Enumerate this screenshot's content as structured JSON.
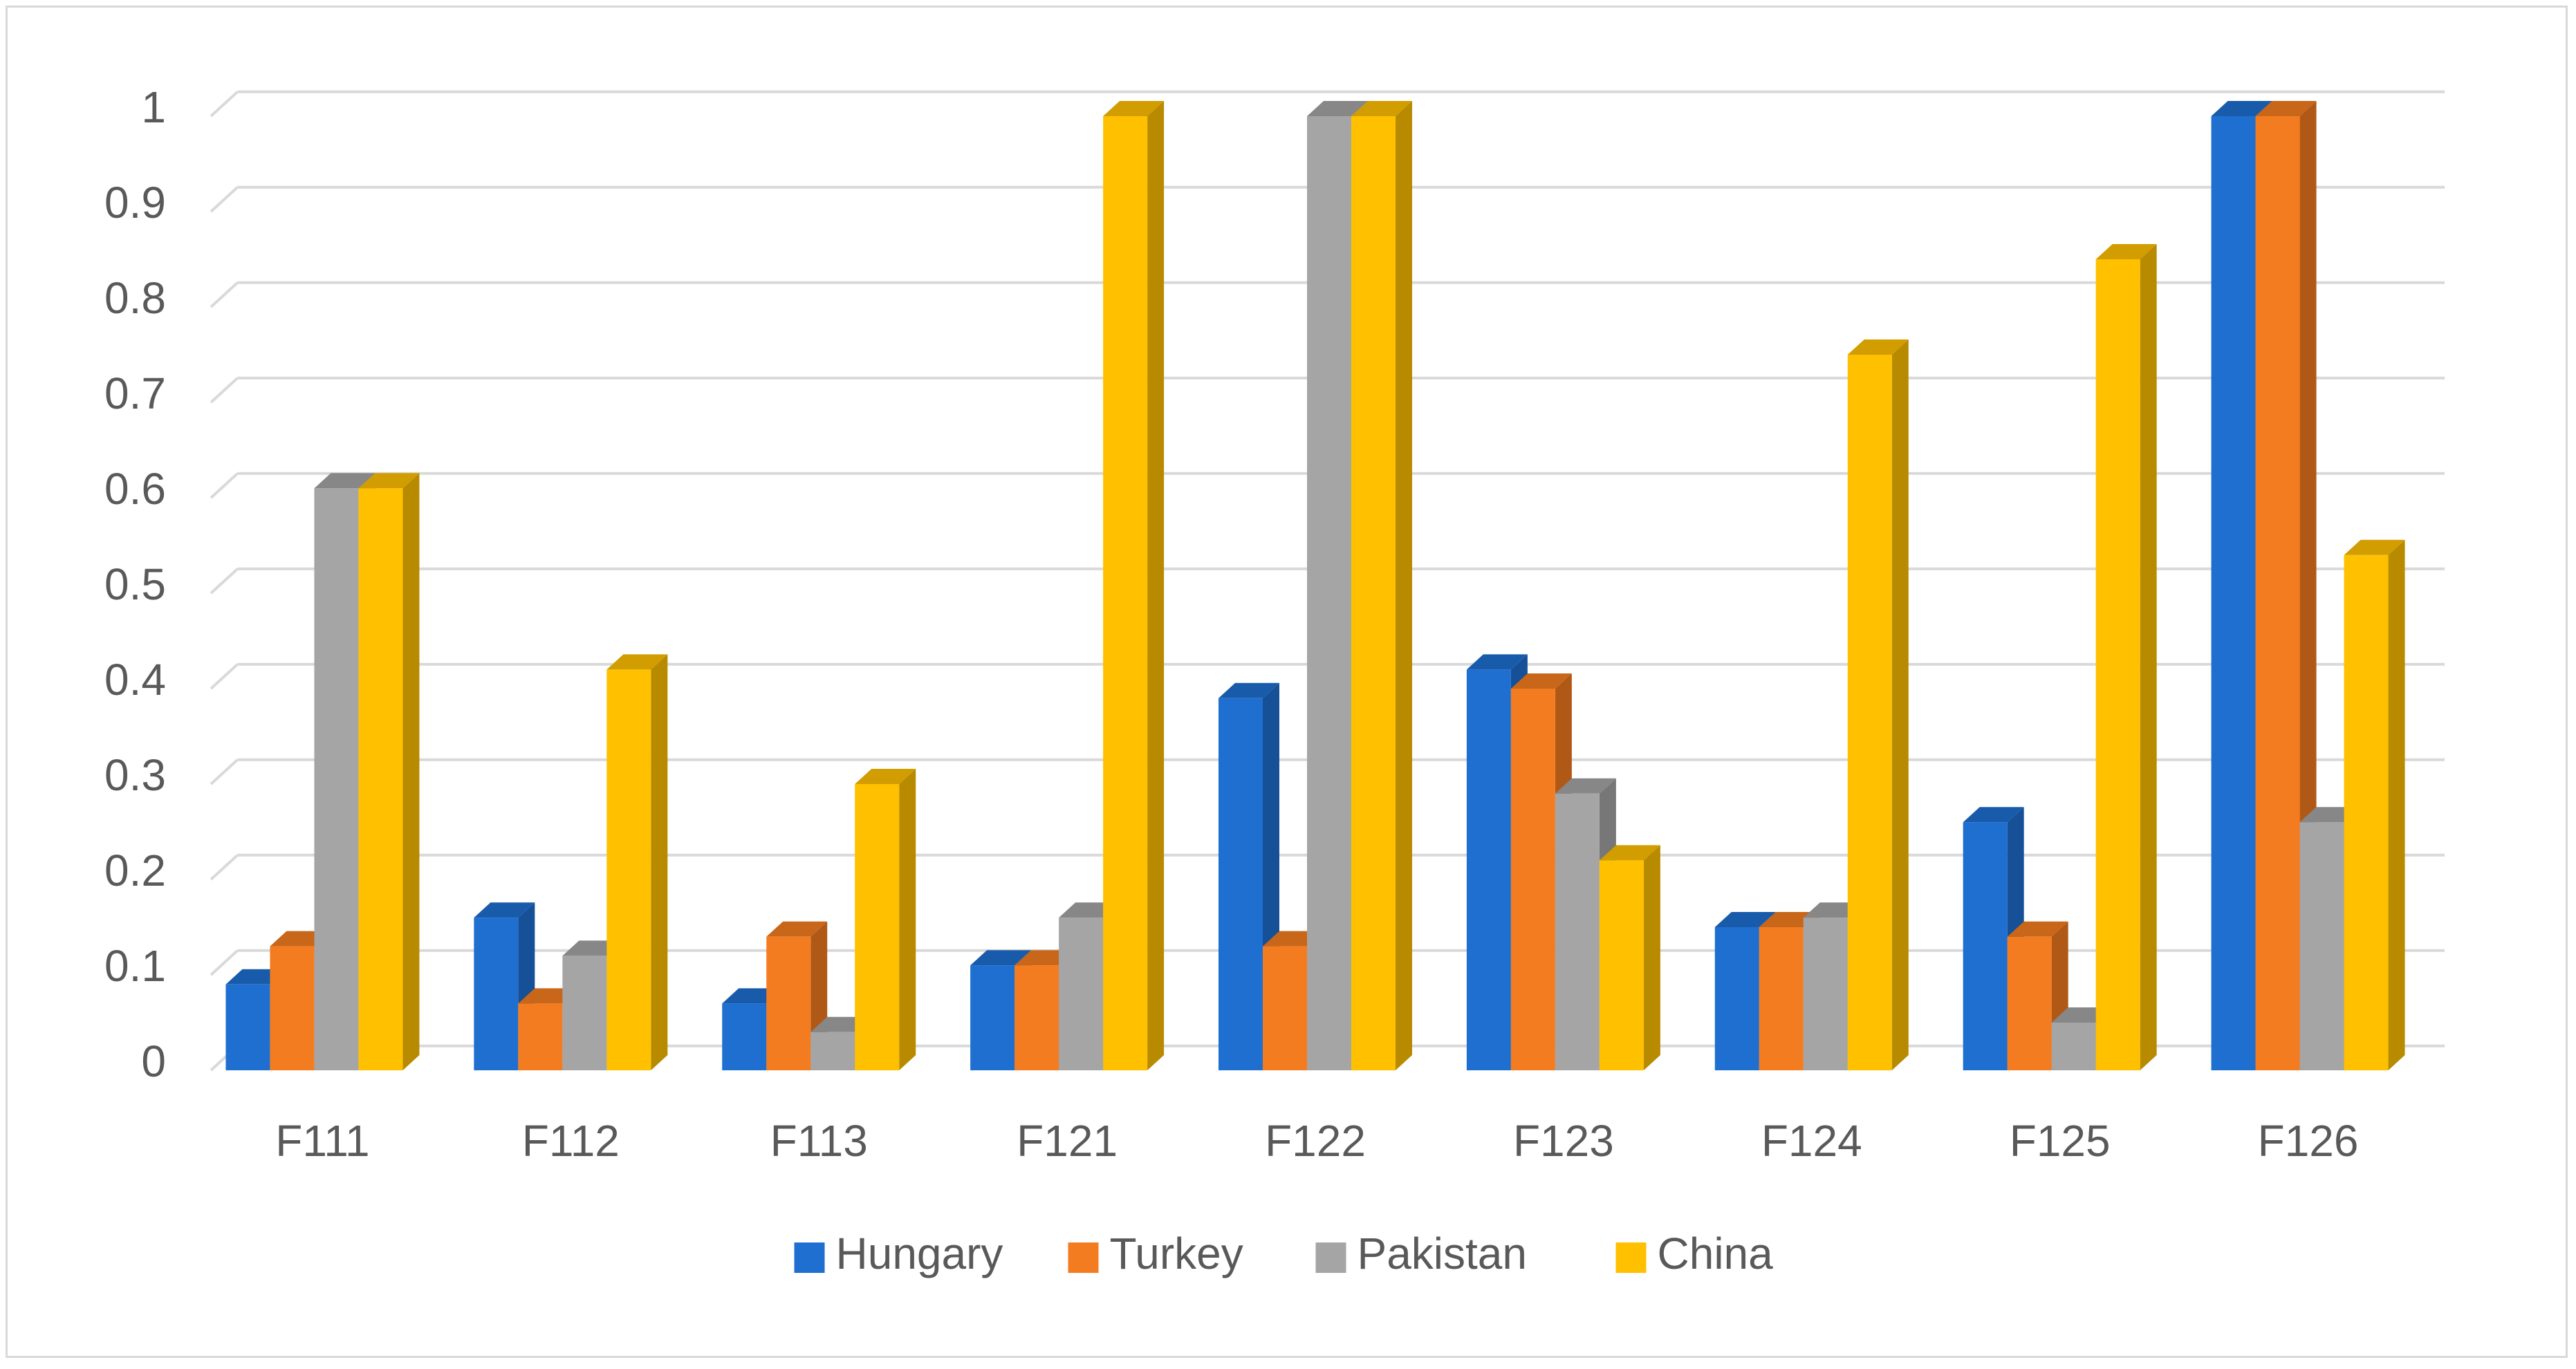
{
  "chart_data": {
    "type": "bar",
    "title": "",
    "xlabel": "",
    "ylabel": "",
    "ylim": [
      0,
      1
    ],
    "yticks": [
      "0",
      "0.1",
      "0.2",
      "0.3",
      "0.4",
      "0.5",
      "0.6",
      "0.7",
      "0.8",
      "0.9",
      "1"
    ],
    "categories": [
      "F111",
      "F112",
      "F113",
      "F121",
      "F122",
      "F123",
      "F124",
      "F125",
      "F126"
    ],
    "series": [
      {
        "name": "Hungary",
        "color": "#1f6fd1",
        "values": [
          0.09,
          0.16,
          0.07,
          0.11,
          0.39,
          0.42,
          0.15,
          0.26,
          1.0
        ]
      },
      {
        "name": "Turkey",
        "color": "#f47c20",
        "values": [
          0.13,
          0.07,
          0.14,
          0.11,
          0.13,
          0.4,
          0.15,
          0.14,
          1.0
        ]
      },
      {
        "name": "Pakistan",
        "color": "#a5a5a5",
        "values": [
          0.61,
          0.12,
          0.04,
          0.16,
          1.0,
          0.29,
          0.16,
          0.05,
          0.26
        ]
      },
      {
        "name": "China",
        "color": "#ffc000",
        "values": [
          0.61,
          0.42,
          0.3,
          1.0,
          1.0,
          0.22,
          0.75,
          0.85,
          0.54
        ]
      }
    ],
    "grid": true,
    "legend": "bottom"
  }
}
